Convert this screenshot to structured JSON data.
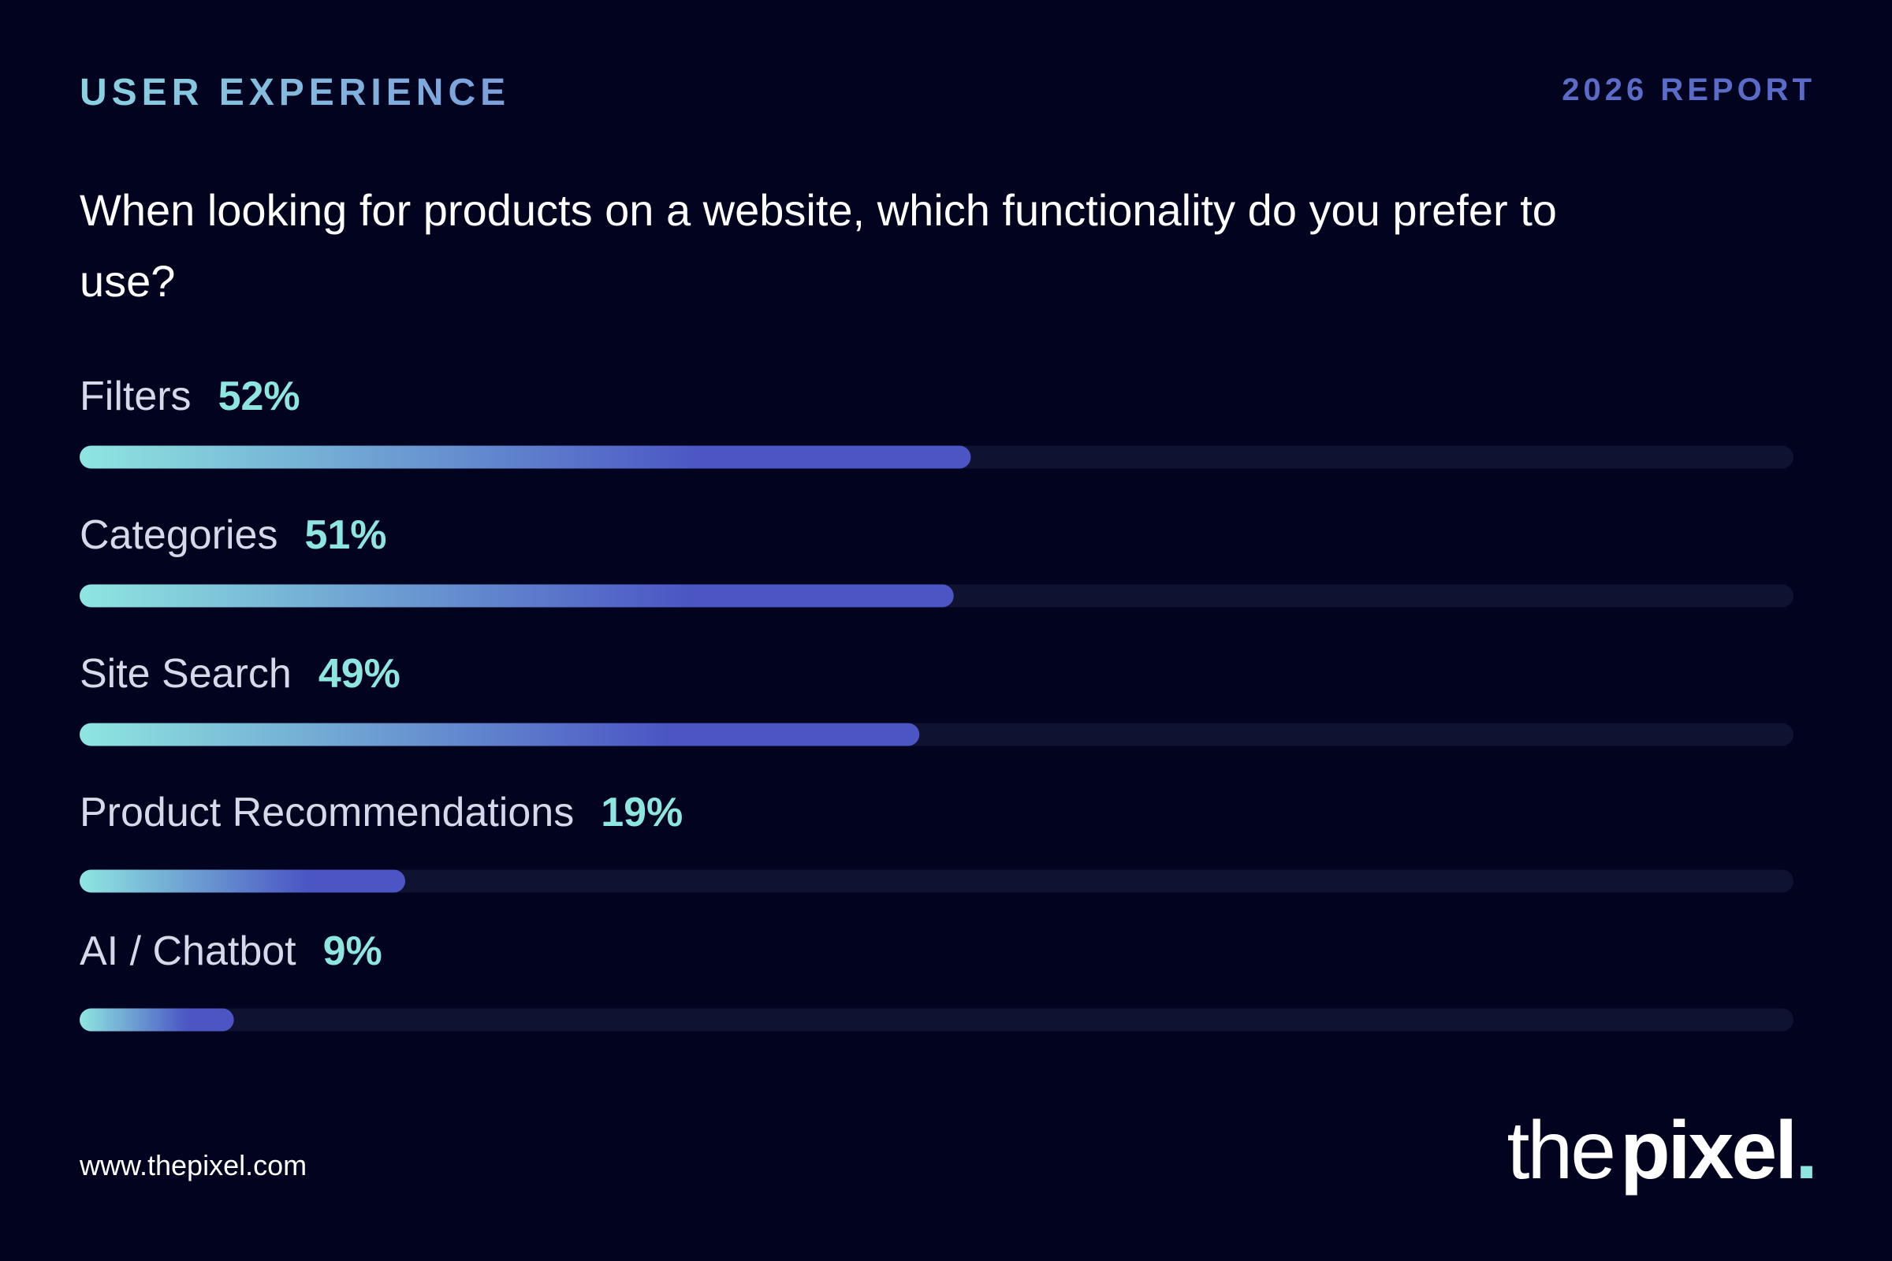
{
  "header": {
    "section": "USER EXPERIENCE",
    "report": "2026 REPORT"
  },
  "chart_data": {
    "type": "bar",
    "orientation": "horizontal",
    "title": "When looking for products on a website, which functionality do you prefer to use?",
    "categories": [
      "Filters",
      "Categories",
      "Site Search",
      "Product Recommendations",
      "AI / Chatbot"
    ],
    "values": [
      52,
      51,
      49,
      19,
      9
    ],
    "value_labels": [
      "52%",
      "51%",
      "49%",
      "19%",
      "9%"
    ],
    "xlim": [
      0,
      100
    ],
    "color": "#4b55c4",
    "start_color": "#8ee6e0"
  },
  "footer": {
    "url": "www.thepixel.com",
    "logo": [
      "the",
      "pixel",
      "."
    ]
  }
}
